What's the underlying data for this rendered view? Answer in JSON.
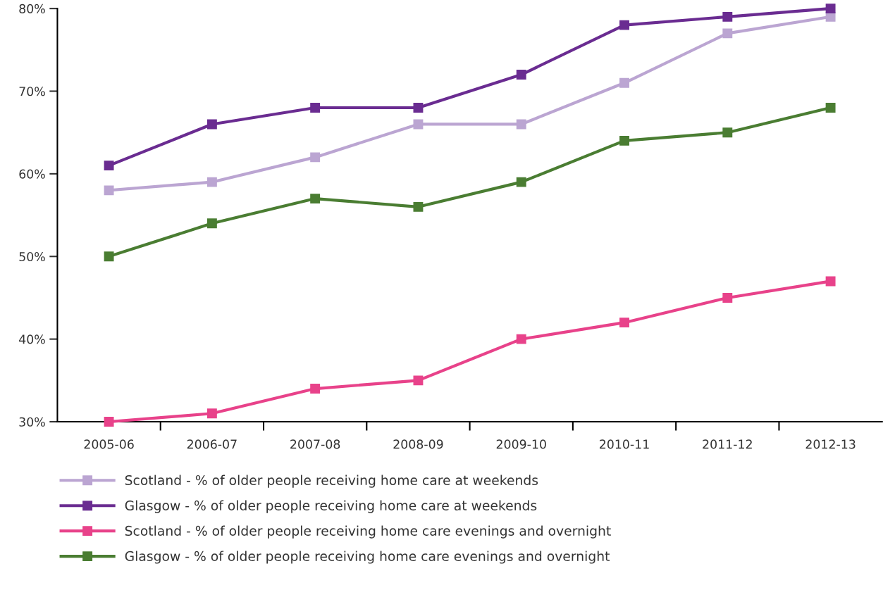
{
  "chart_data": {
    "type": "line",
    "categories": [
      "2005-06",
      "2006-07",
      "2007-08",
      "2008-09",
      "2009-10",
      "2010-11",
      "2011-12",
      "2012-13"
    ],
    "series": [
      {
        "name": "Scotland - % of older people receiving home care at weekends",
        "color": "#bba5d2",
        "values": [
          58,
          59,
          62,
          66,
          66,
          71,
          77,
          79
        ]
      },
      {
        "name": "Glasgow - % of older people receiving home care at weekends",
        "color": "#6a2c91",
        "values": [
          61,
          66,
          68,
          68,
          72,
          78,
          79,
          80
        ]
      },
      {
        "name": "Scotland - % of older people receiving home care evenings and overnight",
        "color": "#e8428a",
        "values": [
          30,
          31,
          34,
          35,
          40,
          42,
          45,
          47
        ]
      },
      {
        "name": "Glasgow - % of older people receiving home care evenings and overnight",
        "color": "#4a7d32",
        "values": [
          50,
          54,
          57,
          56,
          59,
          64,
          65,
          68
        ]
      }
    ],
    "ylim": [
      30,
      80
    ],
    "yticks": [
      {
        "value": 30,
        "label": "30%"
      },
      {
        "value": 40,
        "label": "40%"
      },
      {
        "value": 50,
        "label": "50%"
      },
      {
        "value": 60,
        "label": "60%"
      },
      {
        "value": 70,
        "label": "70%"
      },
      {
        "value": 80,
        "label": "80%"
      }
    ],
    "grid": false,
    "legend": "bottom",
    "marker": "square",
    "line_style": "solid"
  }
}
